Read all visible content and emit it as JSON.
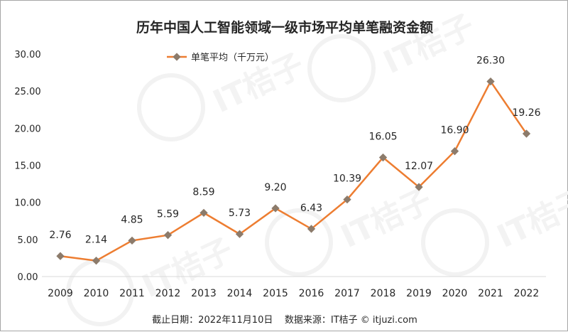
{
  "chart_data": {
    "type": "line",
    "title": "历年中国人工智能领域一级市场平均单笔融资金额",
    "categories": [
      "2009",
      "2010",
      "2011",
      "2012",
      "2013",
      "2014",
      "2015",
      "2016",
      "2017",
      "2018",
      "2019",
      "2020",
      "2021",
      "2022"
    ],
    "series": [
      {
        "name": "单笔平均（千万元）",
        "values": [
          2.76,
          2.14,
          4.85,
          5.59,
          8.59,
          5.73,
          9.2,
          6.43,
          10.39,
          16.05,
          12.07,
          16.9,
          26.3,
          19.26
        ],
        "color": "#ed7d31",
        "marker_color": "#8c7b6b"
      }
    ],
    "data_labels": [
      "2.76",
      "2.14",
      "4.85",
      "5.59",
      "8.59",
      "5.73",
      "9.20",
      "6.43",
      "10.39",
      "16.05",
      "12.07",
      "16.90",
      "26.30",
      "19.26"
    ],
    "ylim": [
      0,
      30
    ],
    "yticks": [
      "0.00",
      "5.00",
      "10.00",
      "15.00",
      "20.00",
      "25.00",
      "30.00"
    ],
    "xlabel": "",
    "ylabel": "",
    "grid": false,
    "legend": "top-left"
  },
  "footer": {
    "note": "截止日期：2022年11月10日    数据来源：IT桔子 © itjuzi.com"
  },
  "watermark": {
    "text": "IT桔子",
    "sub": "ITJUZI.COM"
  }
}
